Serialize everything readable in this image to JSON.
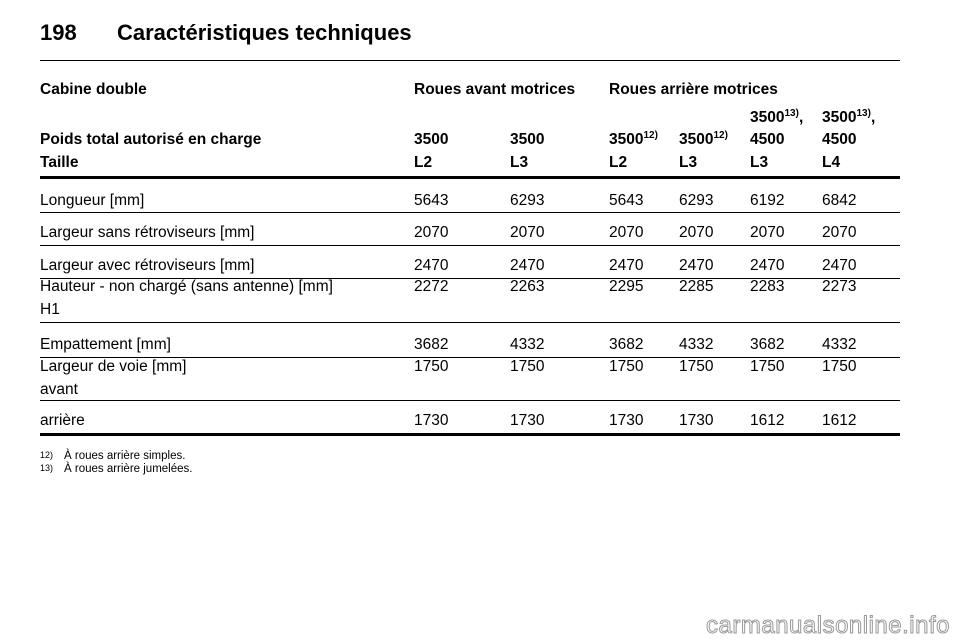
{
  "header": {
    "page_number": "198",
    "title": "Caractéristiques techniques"
  },
  "table": {
    "group_row": [
      "Cabine double",
      "Roues avant motrices",
      "Roues arrière motrices"
    ],
    "weight_row": {
      "label": "Poids total autorisé en charge",
      "cells": [
        {
          "main": "3500"
        },
        {
          "main": "3500"
        },
        {
          "main": "3500",
          "note": "12)"
        },
        {
          "main": "3500",
          "note": "12)"
        },
        {
          "main": "3500",
          "note": "13)",
          "sep": ",",
          "line2": "4500"
        },
        {
          "main": "3500",
          "note": "13)",
          "sep": ",",
          "line2": "4500"
        }
      ]
    },
    "size_row": {
      "label": "Taille",
      "cells": [
        "L2",
        "L3",
        "L2",
        "L3",
        "L3",
        "L4"
      ]
    },
    "rows": [
      {
        "label": "Longueur [mm]",
        "values": [
          "5643",
          "6293",
          "5643",
          "6293",
          "6192",
          "6842"
        ]
      },
      {
        "label": "Largeur sans rétroviseurs [mm]",
        "values": [
          "2070",
          "2070",
          "2070",
          "2070",
          "2070",
          "2070"
        ]
      },
      {
        "label": "Largeur avec rétroviseurs [mm]",
        "values": [
          "2470",
          "2470",
          "2470",
          "2470",
          "2470",
          "2470"
        ]
      },
      {
        "label": "Hauteur - non chargé (sans antenne) [mm]",
        "sublabel": "H1",
        "values": [
          "2272",
          "2263",
          "2295",
          "2285",
          "2283",
          "2273"
        ]
      },
      {
        "label": "Empattement [mm]",
        "values": [
          "3682",
          "4332",
          "3682",
          "4332",
          "3682",
          "4332"
        ]
      },
      {
        "label": "Largeur de voie [mm]",
        "sublabel": "avant",
        "values": [
          "1750",
          "1750",
          "1750",
          "1750",
          "1750",
          "1750"
        ]
      },
      {
        "label": "arrière",
        "values": [
          "1730",
          "1730",
          "1730",
          "1730",
          "1612",
          "1612"
        ]
      }
    ]
  },
  "footnotes": [
    {
      "mark": "12)",
      "text": "À roues arrière simples."
    },
    {
      "mark": "13)",
      "text": "À roues arrière jumelées."
    }
  ],
  "watermark": "carmanualsonline.info"
}
